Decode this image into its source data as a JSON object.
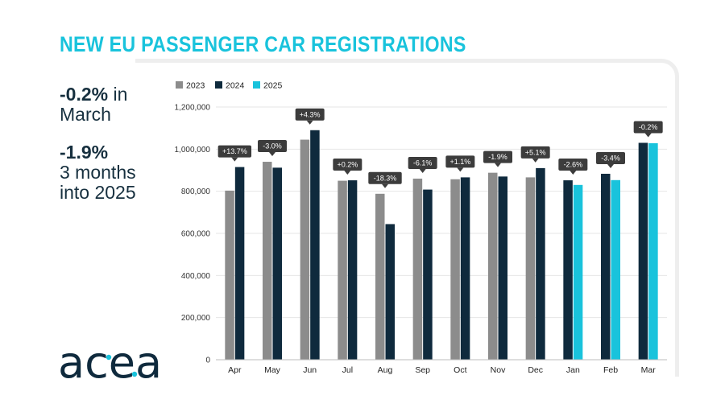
{
  "header": {
    "title": "NEW EU PASSENGER CAR REGISTRATIONS"
  },
  "stats": [
    {
      "value": "-0.2%",
      "text_inline": " in",
      "text_line2": "March",
      "text_line3": ""
    },
    {
      "value": "-1.9%",
      "text_inline": "",
      "text_line2": "3 months",
      "text_line3": "into 2025"
    }
  ],
  "logo": {
    "text": "acea"
  },
  "colors": {
    "s2023": "#8c8c8c",
    "s2024": "#0f2a3d",
    "s2025": "#19c3dc",
    "callout": "#3c3c3c",
    "grid": "#e6e6e6"
  },
  "chart_data": {
    "type": "bar",
    "categories": [
      "Apr",
      "May",
      "Jun",
      "Jul",
      "Aug",
      "Sep",
      "Oct",
      "Nov",
      "Dec",
      "Jan",
      "Feb",
      "Mar"
    ],
    "series": [
      {
        "name": "2023",
        "values": [
          803000,
          940000,
          1045000,
          850000,
          788000,
          860000,
          857000,
          888000,
          866000,
          null,
          null,
          null
        ]
      },
      {
        "name": "2024",
        "values": [
          915000,
          912000,
          1090000,
          852000,
          644000,
          808000,
          866000,
          870000,
          910000,
          852000,
          883000,
          1030000
        ]
      },
      {
        "name": "2025",
        "values": [
          null,
          null,
          null,
          null,
          null,
          null,
          null,
          null,
          null,
          830000,
          853000,
          1028000
        ]
      }
    ],
    "annotations": [
      "+13.7%",
      "-3.0%",
      "+4.3%",
      "+0.2%",
      "-18.3%",
      "-6.1%",
      "+1.1%",
      "-1.9%",
      "+5.1%",
      "-2.6%",
      "-3.4%",
      "-0.2%"
    ],
    "y_ticks": [
      0,
      200000,
      400000,
      600000,
      800000,
      1000000,
      1200000
    ],
    "y_tick_labels": [
      "0",
      "200,000",
      "400,000",
      "600,000",
      "800,000",
      "1,000,000",
      "1,200,000"
    ],
    "ylim": [
      0,
      1200000
    ],
    "legend": [
      "2023",
      "2024",
      "2025"
    ],
    "legend_position": "top-left",
    "grid": true,
    "title": "",
    "xlabel": "",
    "ylabel": ""
  }
}
